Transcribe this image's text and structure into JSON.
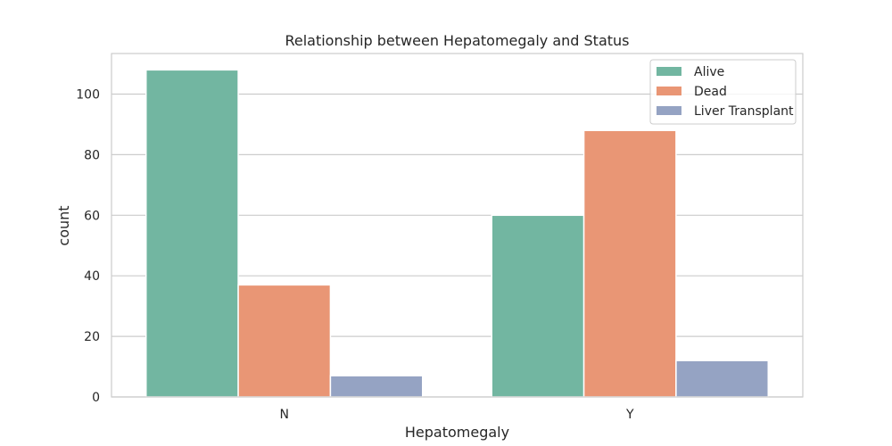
{
  "chart_data": {
    "type": "bar",
    "title": "Relationship between Hepatomegaly and Status",
    "xlabel": "Hepatomegaly",
    "ylabel": "count",
    "categories": [
      "N",
      "Y"
    ],
    "series": [
      {
        "name": "Alive",
        "values": [
          108,
          60
        ],
        "color": "#72b6a1"
      },
      {
        "name": "Dead",
        "values": [
          37,
          88
        ],
        "color": "#e99675"
      },
      {
        "name": "Liver Transplant",
        "values": [
          7,
          12
        ],
        "color": "#95a3c3"
      }
    ],
    "ylim": [
      0,
      113.4
    ],
    "yticks": [
      0,
      20,
      40,
      60,
      80,
      100
    ],
    "grid": "horizontal",
    "legend_position": "top-right"
  }
}
